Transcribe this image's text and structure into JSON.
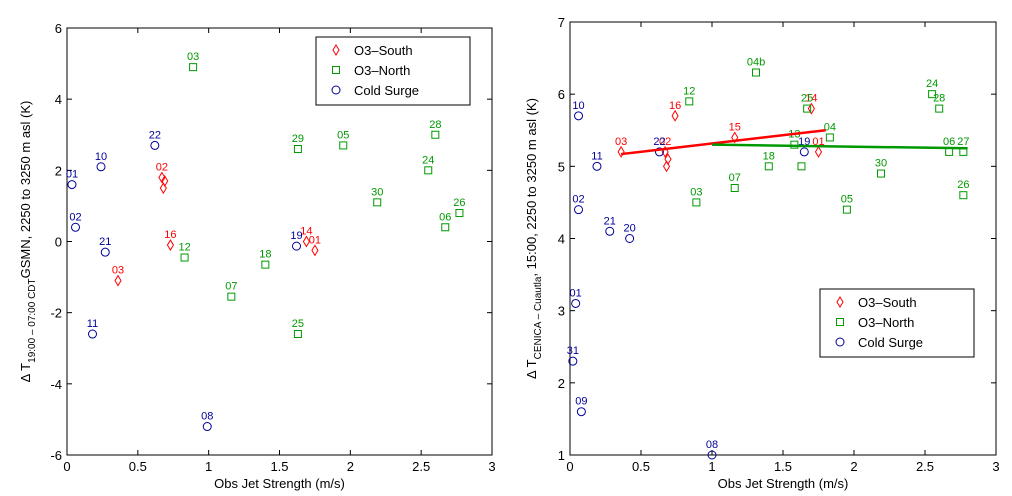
{
  "chart_data": [
    {
      "type": "scatter",
      "xlabel": "Obs Jet Strength (m/s)",
      "ylabel": {
        "main": "Δ T",
        "sub": "19:00 – 07:00 CDT",
        "rest": "GSMN, 2250 to 3250 m asl (K)"
      },
      "xlim": [
        0,
        3
      ],
      "ylim": [
        -6,
        6
      ],
      "xticks": [
        0,
        0.5,
        1,
        1.5,
        2,
        2.5,
        3
      ],
      "yticks": [
        -6,
        -4,
        -2,
        0,
        2,
        4,
        6
      ],
      "legend": "upper right",
      "series": [
        {
          "name": "O3–South",
          "color": "#ff0000",
          "marker": "diamond",
          "x": [
            0.67,
            0.69,
            0.68,
            0.73,
            0.36,
            1.69,
            1.75
          ],
          "values": [
            1.8,
            1.7,
            1.5,
            -0.1,
            -1.1,
            0.0,
            -0.25
          ],
          "labels": [
            "02",
            null,
            null,
            "16",
            "03",
            "14",
            "01"
          ]
        },
        {
          "name": "O3–North",
          "color": "#009900",
          "marker": "square",
          "x": [
            0.89,
            0.83,
            1.16,
            1.4,
            1.63,
            1.63,
            1.95,
            2.19,
            2.6,
            2.55,
            2.67,
            2.77
          ],
          "values": [
            4.9,
            -0.45,
            -1.55,
            -0.65,
            -2.6,
            2.6,
            2.7,
            1.1,
            3.0,
            2.0,
            0.4,
            0.8
          ],
          "labels": [
            "03",
            "12",
            "07",
            "18",
            "25",
            "29",
            "05",
            "30",
            "28",
            "24",
            "06",
            "26"
          ]
        },
        {
          "name": "Cold Surge",
          "color": "#000099",
          "marker": "circle",
          "x": [
            0.035,
            0.06,
            0.24,
            0.27,
            0.18,
            0.62,
            0.99,
            1.62
          ],
          "values": [
            1.6,
            0.4,
            2.1,
            -0.3,
            -2.6,
            2.7,
            -5.2,
            -0.13
          ],
          "labels": [
            "01",
            "02",
            "10",
            "21",
            "11",
            "22",
            "08",
            "19"
          ]
        }
      ]
    },
    {
      "type": "scatter",
      "xlabel": "Obs Jet Strength (m/s)",
      "ylabel": {
        "main": "Δ T",
        "sub": "CENICA – Cuautla",
        "rest": ", 15:00, 2250 to 3250 m asl (K)"
      },
      "xlim": [
        0,
        3
      ],
      "ylim": [
        1,
        7
      ],
      "xticks": [
        0,
        0.5,
        1,
        1.5,
        2,
        2.5,
        3
      ],
      "yticks": [
        1,
        2,
        3,
        4,
        5,
        6,
        7
      ],
      "legend": "lower right",
      "series": [
        {
          "name": "O3–South",
          "color": "#ff0000",
          "marker": "diamond",
          "x": [
            0.74,
            0.36,
            0.67,
            0.69,
            0.68,
            1.16,
            1.7,
            1.75
          ],
          "values": [
            5.7,
            5.2,
            5.2,
            5.1,
            5.0,
            5.4,
            5.8,
            5.2
          ],
          "labels": [
            "16",
            "03",
            "02",
            null,
            null,
            "15",
            "14",
            "01"
          ]
        },
        {
          "name": "O3–North",
          "color": "#009900",
          "marker": "square",
          "x": [
            1.31,
            0.84,
            1.67,
            1.58,
            1.83,
            1.4,
            1.16,
            0.89,
            1.95,
            2.19,
            2.55,
            2.6,
            2.67,
            2.77,
            2.77,
            1.63
          ],
          "values": [
            6.3,
            5.9,
            5.8,
            5.3,
            5.4,
            5.0,
            4.7,
            4.5,
            4.4,
            4.9,
            6.0,
            5.8,
            5.2,
            5.2,
            4.6,
            5.0
          ],
          "labels": [
            "04b",
            "12",
            "25",
            "13",
            "04",
            "18",
            "07",
            "03",
            "05",
            "30",
            "24",
            "28",
            "06",
            "27",
            "26",
            null
          ]
        },
        {
          "name": "Cold Surge",
          "color": "#000099",
          "marker": "circle",
          "x": [
            0.06,
            0.19,
            0.63,
            0.06,
            0.28,
            0.42,
            0.04,
            0.02,
            0.08,
            1.0,
            1.65
          ],
          "values": [
            5.7,
            5.0,
            5.2,
            4.4,
            4.1,
            4.0,
            3.1,
            2.3,
            1.6,
            1.0,
            5.2
          ],
          "labels": [
            "10",
            "11",
            "22",
            "02",
            "21",
            "20",
            "01",
            "31",
            "09",
            "08",
            "19"
          ]
        }
      ],
      "fit_lines": [
        {
          "color": "#ff0000",
          "x": [
            0.36,
            1.8
          ],
          "y": [
            5.17,
            5.5
          ]
        },
        {
          "color": "#009900",
          "x": [
            1.0,
            2.8
          ],
          "y": [
            5.3,
            5.25
          ]
        }
      ]
    }
  ]
}
